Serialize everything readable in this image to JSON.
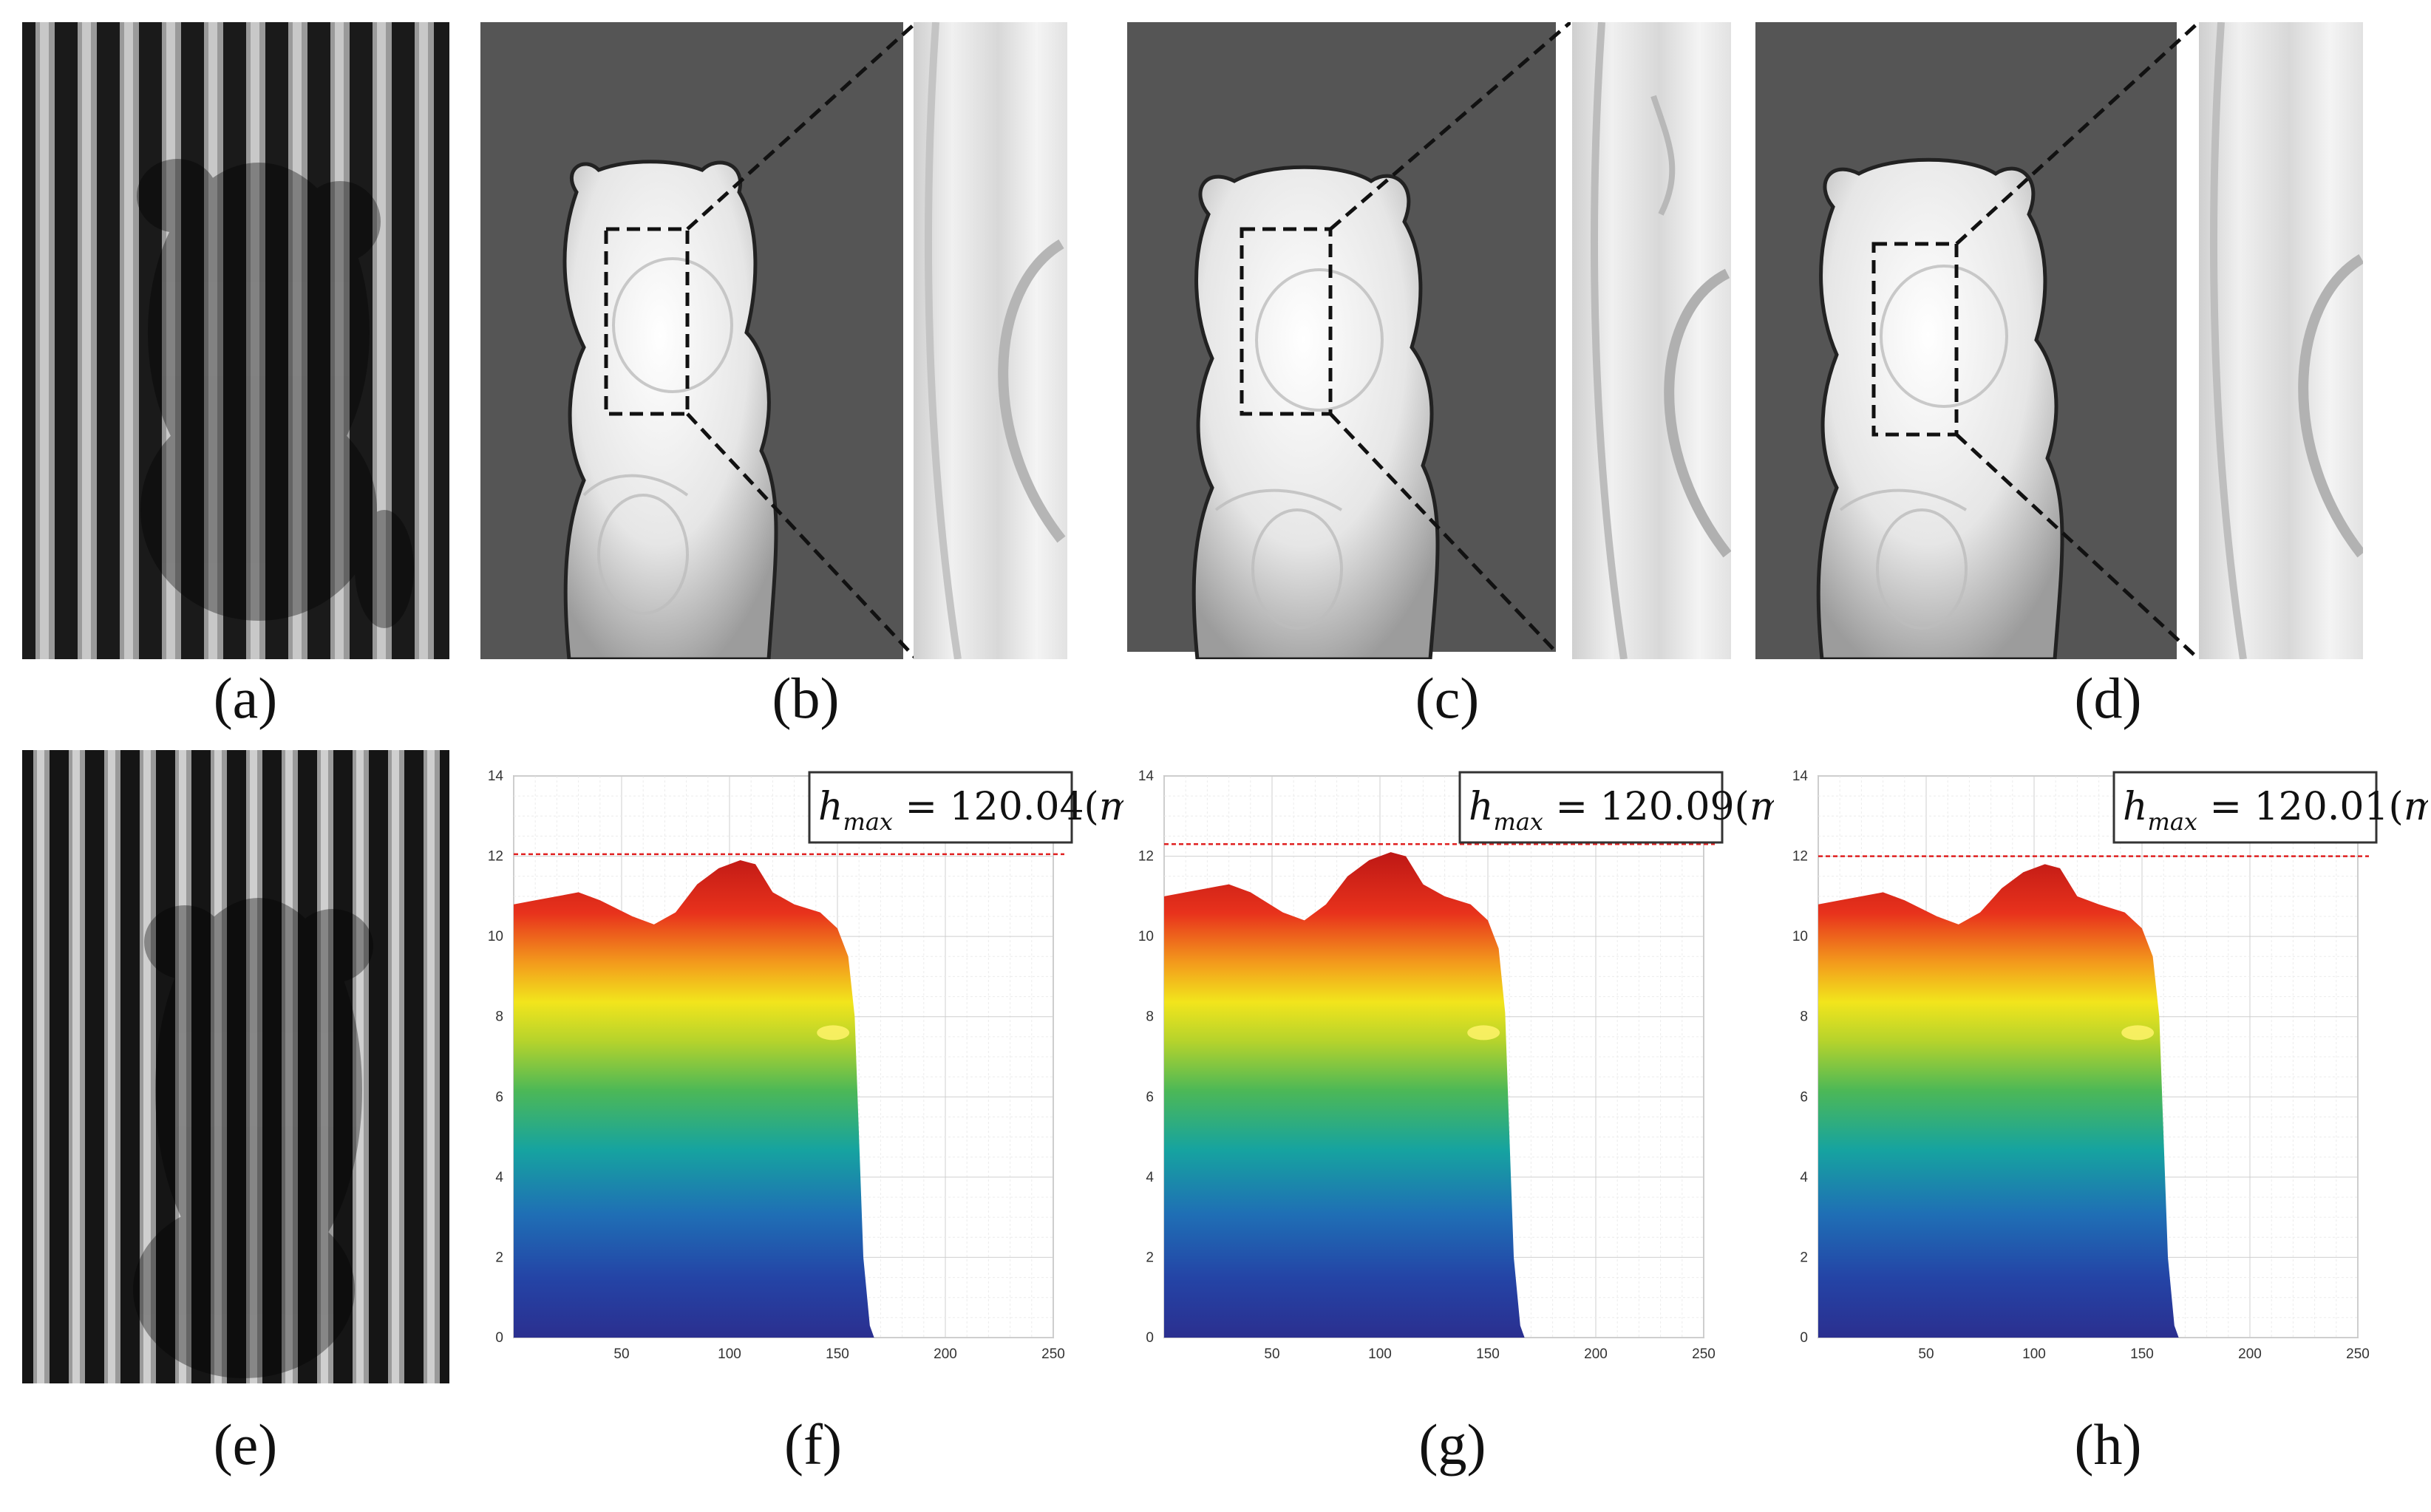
{
  "panels": {
    "top": [
      {
        "label": "(a)"
      },
      {
        "label": "(b)"
      },
      {
        "label": "(c)"
      },
      {
        "label": "(d)"
      }
    ],
    "bottom": [
      {
        "label": "(e)"
      },
      {
        "label": "(f)"
      },
      {
        "label": "(g)"
      },
      {
        "label": "(h)"
      }
    ]
  },
  "colors": {
    "background_dark": "#555555",
    "fringe_dark": "#1a1a1a",
    "fringe_light": "#bdbdbd",
    "red_line": "#e02020",
    "colormap": [
      "#2b2f8f",
      "#1f6fb5",
      "#16a3a0",
      "#4cb857",
      "#b5d32c",
      "#f2e51c",
      "#f39a1c",
      "#e8321c",
      "#c21818"
    ]
  },
  "chart_data": [
    {
      "type": "area",
      "panel": "(f)",
      "x_ticks": [
        50,
        100,
        150,
        200,
        250
      ],
      "y_ticks": [
        0,
        2,
        4,
        6,
        8,
        10,
        12,
        14
      ],
      "xlim": [
        0,
        250
      ],
      "ylim": [
        0,
        14
      ],
      "grid": true,
      "annotation": {
        "symbol": "h",
        "subscript": "max",
        "value_text": " = 120.04(",
        "unit": "mm",
        "close": ")"
      },
      "ref_line_y": 12.05,
      "profile": {
        "x": [
          0,
          10,
          20,
          30,
          40,
          55,
          65,
          75,
          85,
          95,
          105,
          112,
          120,
          130,
          142,
          150,
          155,
          158,
          160,
          162,
          165,
          167
        ],
        "y": [
          10.8,
          10.9,
          11.0,
          11.1,
          10.9,
          10.5,
          10.3,
          10.6,
          11.3,
          11.7,
          11.9,
          11.8,
          11.1,
          10.8,
          10.6,
          10.2,
          9.5,
          8.0,
          5.0,
          2.0,
          0.3,
          0
        ]
      }
    },
    {
      "type": "area",
      "panel": "(g)",
      "x_ticks": [
        50,
        100,
        150,
        200,
        250
      ],
      "y_ticks": [
        0,
        2,
        4,
        6,
        8,
        10,
        12,
        14
      ],
      "xlim": [
        0,
        250
      ],
      "ylim": [
        0,
        14
      ],
      "grid": true,
      "annotation": {
        "symbol": "h",
        "subscript": "max",
        "value_text": " = 120.09(",
        "unit": "mm",
        "close": ")"
      },
      "ref_line_y": 12.3,
      "profile": {
        "x": [
          0,
          10,
          20,
          30,
          40,
          55,
          65,
          75,
          85,
          95,
          105,
          112,
          120,
          130,
          142,
          150,
          155,
          158,
          160,
          162,
          165,
          167
        ],
        "y": [
          11.0,
          11.1,
          11.2,
          11.3,
          11.1,
          10.6,
          10.4,
          10.8,
          11.5,
          11.9,
          12.1,
          12.0,
          11.3,
          11.0,
          10.8,
          10.4,
          9.7,
          8.1,
          5.0,
          2.0,
          0.3,
          0
        ]
      }
    },
    {
      "type": "area",
      "panel": "(h)",
      "x_ticks": [
        50,
        100,
        150,
        200,
        250
      ],
      "y_ticks": [
        0,
        2,
        4,
        6,
        8,
        10,
        12,
        14
      ],
      "xlim": [
        0,
        250
      ],
      "ylim": [
        0,
        14
      ],
      "grid": true,
      "annotation": {
        "symbol": "h",
        "subscript": "max",
        "value_text": " = 120.01(",
        "unit": "mm",
        "close": ")"
      },
      "ref_line_y": 12.0,
      "profile": {
        "x": [
          0,
          10,
          20,
          30,
          40,
          55,
          65,
          75,
          85,
          95,
          105,
          112,
          120,
          130,
          142,
          150,
          155,
          158,
          160,
          162,
          165,
          167
        ],
        "y": [
          10.8,
          10.9,
          11.0,
          11.1,
          10.9,
          10.5,
          10.3,
          10.6,
          11.2,
          11.6,
          11.8,
          11.7,
          11.0,
          10.8,
          10.6,
          10.2,
          9.5,
          8.0,
          5.0,
          2.0,
          0.3,
          0
        ]
      }
    }
  ]
}
